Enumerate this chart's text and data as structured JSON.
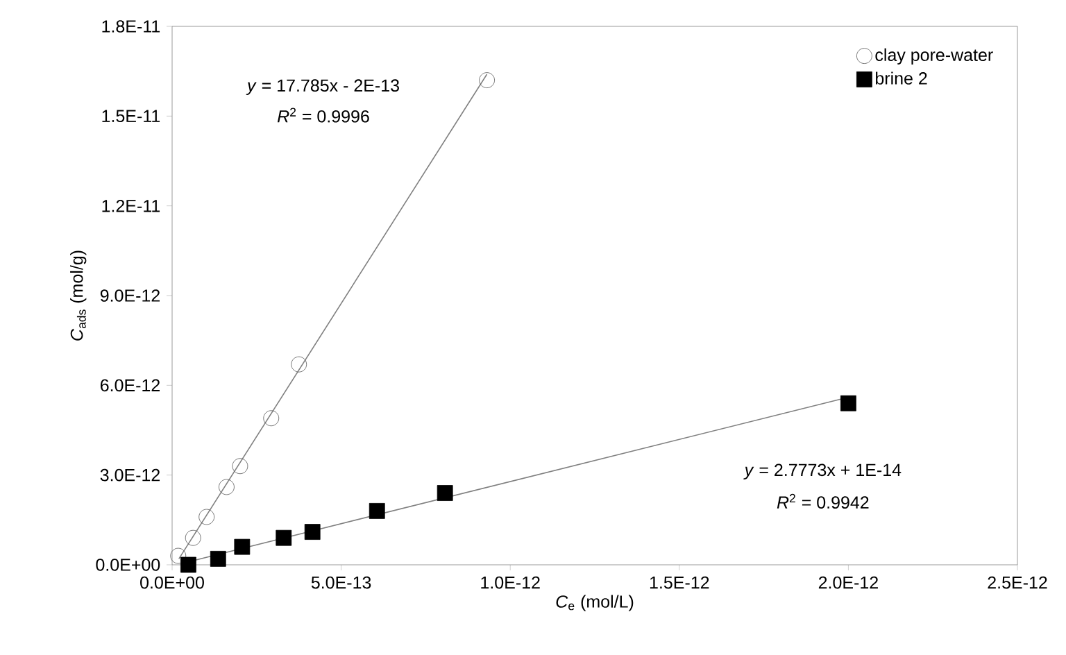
{
  "chart_data": {
    "type": "scatter",
    "xlabel": "*C*$_{e}$ (mol/L)",
    "ylabel": "*C*$_{ads}$ (mol/g)",
    "xlim": [
      0,
      2.5e-12
    ],
    "ylim": [
      0,
      1.8e-11
    ],
    "xticks": [
      {
        "value": 0,
        "label": "0.0E+00"
      },
      {
        "value": 5e-13,
        "label": "5.0E-13"
      },
      {
        "value": 1e-12,
        "label": "1.0E-12"
      },
      {
        "value": 1.5e-12,
        "label": "1.5E-12"
      },
      {
        "value": 2e-12,
        "label": "2.0E-12"
      },
      {
        "value": 2.5e-12,
        "label": "2.5E-12"
      }
    ],
    "yticks": [
      {
        "value": 0,
        "label": "0.0E+00"
      },
      {
        "value": 3e-12,
        "label": "3.0E-12"
      },
      {
        "value": 6e-12,
        "label": "6.0E-12"
      },
      {
        "value": 9e-12,
        "label": "9.0E-12"
      },
      {
        "value": 1.2e-11,
        "label": "1.2E-11"
      },
      {
        "value": 1.5e-11,
        "label": "1.5E-11"
      },
      {
        "value": 1.8e-11,
        "label": "1.8E-11"
      }
    ],
    "legend": "top right",
    "grid": false,
    "series": [
      {
        "name": "clay pore-water",
        "type": "scatter",
        "marker": "circle",
        "color": "#555555",
        "x": [
          1.8e-14,
          6.2e-14,
          1.02e-13,
          1.61e-13,
          2.01e-13,
          2.93e-13,
          3.75e-13,
          9.31e-13
        ],
        "values": [
          3e-13,
          9e-13,
          1.6e-12,
          2.6e-12,
          3.3e-12,
          4.9e-12,
          6.7e-12,
          1.62e-11
        ]
      },
      {
        "name": "brine 2",
        "type": "scatter",
        "marker": "square",
        "color": "#000000",
        "x": [
          4.8e-14,
          1.36e-13,
          2.07e-13,
          3.3e-13,
          4.15e-13,
          6.06e-13,
          8.07e-13,
          2e-12
        ],
        "values": [
          0,
          2e-13,
          6e-13,
          9e-13,
          1.1e-12,
          1.8e-12,
          2.4e-12,
          5.4e-12
        ]
      },
      {
        "type": "line",
        "marker": "none",
        "color": "#808080",
        "x": [
          2e-14,
          9.31e-13
        ],
        "values": [
          2e-13,
          1.64e-11
        ]
      },
      {
        "type": "line",
        "marker": "none",
        "color": "#808080",
        "x": [
          4.8e-14,
          2e-12
        ],
        "values": [
          1e-13,
          5.6e-12
        ]
      }
    ],
    "annotations": [
      "*y* = 17.785x - 2E-13",
      "*R*$^{2}$ = 0.9996",
      "*y* = 2.7773x + 1E-14",
      "*R*$^{2}$ = 0.9942"
    ]
  }
}
